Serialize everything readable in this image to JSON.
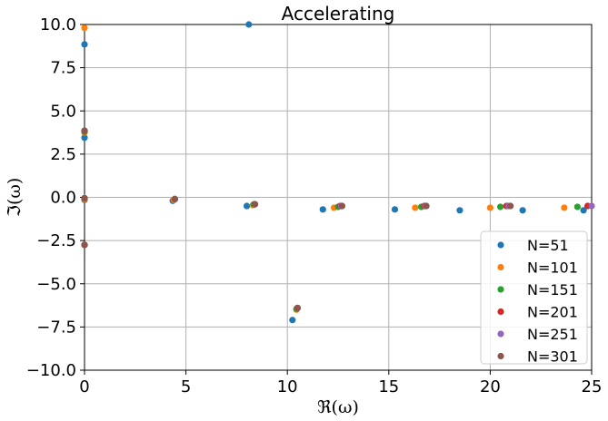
{
  "chart_data": {
    "type": "scatter",
    "title": "Accelerating",
    "xlabel": "ℜ(ω)",
    "ylabel": "ℑ(ω)",
    "xlim": [
      0,
      25
    ],
    "ylim": [
      -10,
      10
    ],
    "xticks": [
      "0",
      "5",
      "10",
      "15",
      "20",
      "25"
    ],
    "yticks": [
      "10.0",
      "7.5",
      "5.0",
      "2.5",
      "0.0",
      "−2.5",
      "−5.0",
      "−7.5",
      "−10.0"
    ],
    "grid": true,
    "legend_position": "lower-right",
    "series": [
      {
        "name": "N=51",
        "color": "#1f77b4",
        "points": [
          [
            0,
            8.85
          ],
          [
            0,
            3.45
          ],
          [
            0,
            -0.15
          ],
          [
            0,
            -2.75
          ],
          [
            4.35,
            -0.2
          ],
          [
            8.0,
            -0.5
          ],
          [
            8.1,
            10.0
          ],
          [
            10.25,
            -7.1
          ],
          [
            11.75,
            -0.7
          ],
          [
            15.3,
            -0.7
          ],
          [
            18.5,
            -0.75
          ],
          [
            21.6,
            -0.75
          ],
          [
            24.6,
            -0.75
          ]
        ]
      },
      {
        "name": "N=101",
        "color": "#ff7f0e",
        "points": [
          [
            0,
            9.8
          ],
          [
            0,
            3.75
          ],
          [
            0,
            -0.1
          ],
          [
            0,
            -2.75
          ],
          [
            4.4,
            -0.15
          ],
          [
            8.3,
            -0.45
          ],
          [
            10.45,
            -6.5
          ],
          [
            12.3,
            -0.6
          ],
          [
            16.3,
            -0.6
          ],
          [
            20.0,
            -0.6
          ],
          [
            23.65,
            -0.6
          ]
        ]
      },
      {
        "name": "N=151",
        "color": "#2ca02c",
        "points": [
          [
            0,
            3.8
          ],
          [
            0,
            -0.05
          ],
          [
            0,
            -2.75
          ],
          [
            4.45,
            -0.1
          ],
          [
            8.35,
            -0.4
          ],
          [
            10.45,
            -6.45
          ],
          [
            12.5,
            -0.55
          ],
          [
            16.6,
            -0.55
          ],
          [
            20.5,
            -0.55
          ],
          [
            24.3,
            -0.55
          ]
        ]
      },
      {
        "name": "N=201",
        "color": "#d62728",
        "points": [
          [
            0,
            3.85
          ],
          [
            0,
            -0.05
          ],
          [
            0,
            -2.75
          ],
          [
            4.45,
            -0.1
          ],
          [
            8.4,
            -0.4
          ],
          [
            10.5,
            -6.4
          ],
          [
            12.6,
            -0.5
          ],
          [
            16.75,
            -0.5
          ],
          [
            20.8,
            -0.5
          ],
          [
            24.8,
            -0.5
          ]
        ]
      },
      {
        "name": "N=251",
        "color": "#9467bd",
        "points": [
          [
            0,
            3.85
          ],
          [
            0,
            -0.05
          ],
          [
            0,
            -2.75
          ],
          [
            4.45,
            -0.1
          ],
          [
            8.4,
            -0.4
          ],
          [
            10.5,
            -6.4
          ],
          [
            12.65,
            -0.5
          ],
          [
            16.8,
            -0.5
          ],
          [
            20.9,
            -0.5
          ],
          [
            25.0,
            -0.5
          ]
        ]
      },
      {
        "name": "N=301",
        "color": "#8c564b",
        "points": [
          [
            0,
            3.85
          ],
          [
            0,
            -0.05
          ],
          [
            0,
            -2.75
          ],
          [
            4.45,
            -0.1
          ],
          [
            8.4,
            -0.4
          ],
          [
            10.5,
            -6.4
          ],
          [
            12.7,
            -0.5
          ],
          [
            16.85,
            -0.5
          ],
          [
            21.0,
            -0.5
          ]
        ]
      }
    ]
  }
}
